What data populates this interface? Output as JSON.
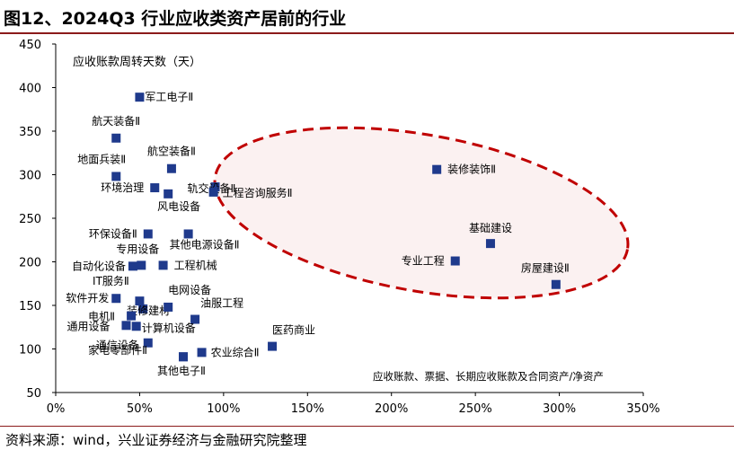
{
  "title": "图12、2024Q3 行业应收类资产居前的行业",
  "source": "资料来源：wind，兴业证券经济与金融研究院整理",
  "chart_data": {
    "type": "scatter",
    "ylabel": "应收账款周转天数（天）",
    "xlabel": "应收账款、票据、长期应收账款及合同资产/净资产",
    "xlim": [
      0,
      3.5
    ],
    "ylim": [
      50,
      450
    ],
    "x_ticks": [
      "0%",
      "50%",
      "100%",
      "150%",
      "200%",
      "250%",
      "300%",
      "350%"
    ],
    "y_ticks": [
      "50",
      "100",
      "150",
      "200",
      "250",
      "300",
      "350",
      "400",
      "450"
    ],
    "grid": false,
    "marker_color": "#1f3a8c",
    "highlight_color": "#c00000",
    "points": [
      {
        "label": "军工电子Ⅱ",
        "x": 0.5,
        "y": 389
      },
      {
        "label": "航天装备Ⅱ",
        "x": 0.36,
        "y": 342
      },
      {
        "label": "地面兵装Ⅱ",
        "x": 0.36,
        "y": 298
      },
      {
        "label": "航空装备Ⅱ",
        "x": 0.69,
        "y": 307
      },
      {
        "label": "轨交设备Ⅱ",
        "x": 0.95,
        "y": 286
      },
      {
        "label": "环境治理",
        "x": 0.59,
        "y": 285
      },
      {
        "label": "工程咨询服务Ⅱ",
        "x": 0.94,
        "y": 280
      },
      {
        "label": "风电设备",
        "x": 0.67,
        "y": 278
      },
      {
        "label": "环保设备Ⅱ",
        "x": 0.55,
        "y": 232
      },
      {
        "label": "其他电源设备Ⅱ",
        "x": 0.79,
        "y": 232
      },
      {
        "label": "专用设备",
        "x": 0.51,
        "y": 196
      },
      {
        "label": "自动化设备",
        "x": 0.46,
        "y": 195
      },
      {
        "label": "工程机械",
        "x": 0.64,
        "y": 196
      },
      {
        "label": "IT服务Ⅱ",
        "x": 0.5,
        "y": 155
      },
      {
        "label": "软件开发",
        "x": 0.36,
        "y": 158
      },
      {
        "label": "装修建材",
        "x": 0.52,
        "y": 146
      },
      {
        "label": "电网设备",
        "x": 0.67,
        "y": 148
      },
      {
        "label": "电机Ⅱ",
        "x": 0.45,
        "y": 138
      },
      {
        "label": "油服工程",
        "x": 0.83,
        "y": 134
      },
      {
        "label": "通用设备",
        "x": 0.42,
        "y": 127
      },
      {
        "label": "计算机设备",
        "x": 0.48,
        "y": 126
      },
      {
        "label": "通信设备",
        "x": 0.55,
        "y": 107
      },
      {
        "label": "医药商业",
        "x": 1.29,
        "y": 103
      },
      {
        "label": "农业综合Ⅱ",
        "x": 0.87,
        "y": 96
      },
      {
        "label": "家电零部件Ⅱ",
        "x": 0.76,
        "y": 91
      },
      {
        "label": "其他电子Ⅱ",
        "x": 0.76,
        "y": 91
      },
      {
        "label": "装修装饰Ⅱ",
        "x": 2.27,
        "y": 306
      },
      {
        "label": "基础建设",
        "x": 2.59,
        "y": 221
      },
      {
        "label": "专业工程",
        "x": 2.38,
        "y": 201
      },
      {
        "label": "房屋建设Ⅱ",
        "x": 2.98,
        "y": 174
      }
    ]
  }
}
